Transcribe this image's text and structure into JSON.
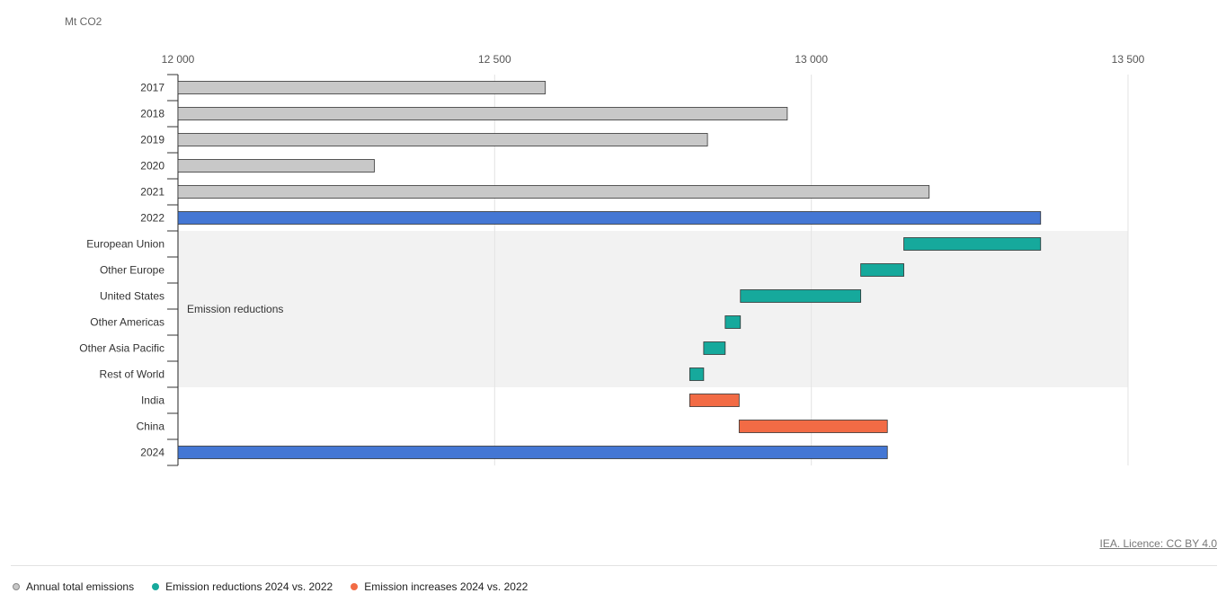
{
  "unit_label": "Mt CO2",
  "source_link": "IEA. Licence: CC BY 4.0",
  "legend": [
    {
      "label": "Annual total emissions",
      "color": "#c8c8c8"
    },
    {
      "label": "Emission reductions 2024 vs. 2022",
      "color": "#16a99c"
    },
    {
      "label": "Emission increases 2024 vs. 2022",
      "color": "#f26b45"
    }
  ],
  "chart_data": {
    "type": "bar",
    "orientation": "horizontal",
    "subtype": "waterfall",
    "ylabel": "Mt CO2",
    "xlim": [
      12000,
      13500
    ],
    "xticks": [
      12000,
      12500,
      13000,
      13500
    ],
    "xtick_labels": [
      "12 000",
      "12 500",
      "13 000",
      "13 500"
    ],
    "grid": true,
    "colors": {
      "annual_total": "#c8c8c8",
      "highlight_total": "#4477d4",
      "reduction": "#16a99c",
      "increase": "#f26b45"
    },
    "region_annotation": "Emission reductions",
    "categories": [
      "2017",
      "2018",
      "2019",
      "2020",
      "2021",
      "2022",
      "European Union",
      "Other Europe",
      "United States",
      "Other Americas",
      "Other Asia Pacific",
      "Rest of World",
      "India",
      "China",
      "2024"
    ],
    "bars": [
      {
        "category": "2017",
        "kind": "annual_total",
        "start": 12000,
        "end": 12580
      },
      {
        "category": "2018",
        "kind": "annual_total",
        "start": 12000,
        "end": 12962
      },
      {
        "category": "2019",
        "kind": "annual_total",
        "start": 12000,
        "end": 12836
      },
      {
        "category": "2020",
        "kind": "annual_total",
        "start": 12000,
        "end": 12310
      },
      {
        "category": "2021",
        "kind": "annual_total",
        "start": 12000,
        "end": 13186
      },
      {
        "category": "2022",
        "kind": "highlight_total",
        "start": 12000,
        "end": 13362
      },
      {
        "category": "European Union",
        "kind": "reduction",
        "start": 13146,
        "end": 13362
      },
      {
        "category": "Other Europe",
        "kind": "reduction",
        "start": 13078,
        "end": 13146
      },
      {
        "category": "United States",
        "kind": "reduction",
        "start": 12888,
        "end": 13078
      },
      {
        "category": "Other Americas",
        "kind": "reduction",
        "start": 12864,
        "end": 12888
      },
      {
        "category": "Other Asia Pacific",
        "kind": "reduction",
        "start": 12830,
        "end": 12864
      },
      {
        "category": "Rest of World",
        "kind": "reduction",
        "start": 12808,
        "end": 12830
      },
      {
        "category": "India",
        "kind": "increase",
        "start": 12808,
        "end": 12886
      },
      {
        "category": "China",
        "kind": "increase",
        "start": 12886,
        "end": 13120
      },
      {
        "category": "2024",
        "kind": "highlight_total",
        "start": 12000,
        "end": 13120
      }
    ]
  }
}
